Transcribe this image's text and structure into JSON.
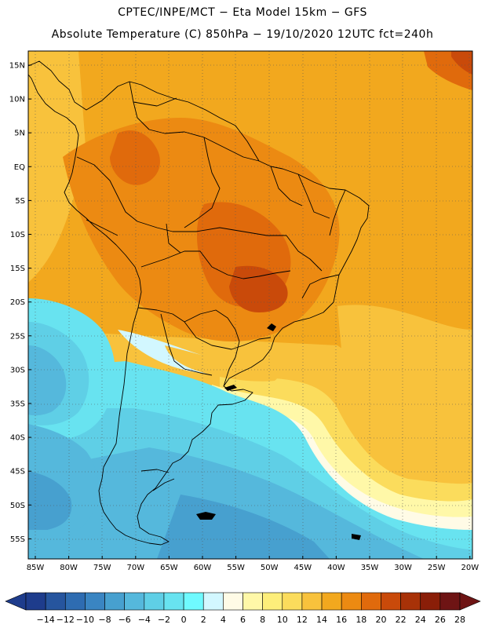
{
  "title": {
    "line1": "CPTEC/INPE/MCT −  Eta Model 15km − GFS",
    "line2": "Absolute Temperature (C) 850hPa − 19/10/2020 12UTC fct=240h"
  },
  "lat_axis": [
    "15N",
    "10N",
    "5N",
    "EQ",
    "5S",
    "10S",
    "15S",
    "20S",
    "25S",
    "30S",
    "35S",
    "40S",
    "45S",
    "50S",
    "55S"
  ],
  "lon_axis": [
    "85W",
    "80W",
    "75W",
    "70W",
    "65W",
    "60W",
    "55W",
    "50W",
    "45W",
    "40W",
    "35W",
    "30W",
    "25W",
    "20W"
  ],
  "colorbar": {
    "labels": [
      "−14",
      "−12",
      "−10",
      "−8",
      "−6",
      "−4",
      "−2",
      "0",
      "2",
      "4",
      "6",
      "8",
      "10",
      "12",
      "14",
      "16",
      "18",
      "20",
      "22",
      "24",
      "26",
      "28"
    ],
    "colors": [
      "#1e3c8c",
      "#26559e",
      "#2e6cb1",
      "#3a85c2",
      "#47a0cf",
      "#55b8dc",
      "#5fcfe6",
      "#68e3f0",
      "#6ffaff",
      "#d2f7ff",
      "#fffbe6",
      "#fff8a8",
      "#fdee7a",
      "#fbdc5c",
      "#f8c23c",
      "#f2a81e",
      "#ec8a12",
      "#e06a0c",
      "#c94a0a",
      "#a83208",
      "#8a1e08",
      "#6e1414"
    ],
    "low_color": "#1e3c8c",
    "high_color": "#6e1414"
  }
}
